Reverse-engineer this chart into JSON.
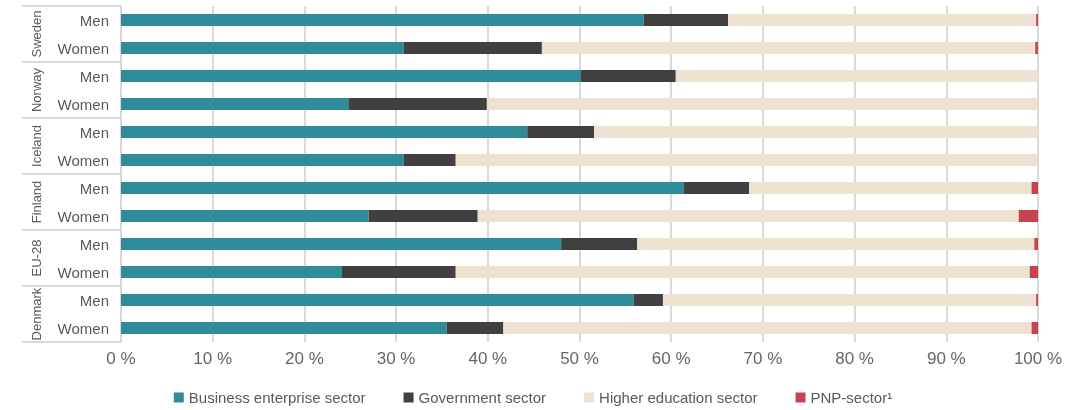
{
  "chart_data": {
    "type": "bar",
    "orientation": "horizontal",
    "stacked": true,
    "categories": [
      "Men",
      "Women",
      "Men",
      "Women",
      "Men",
      "Women",
      "Men",
      "Women",
      "Men",
      "Women",
      "Men",
      "Women"
    ],
    "annotations": [
      "Sweden",
      "Norway",
      "Iceland",
      "Finland",
      "EU-28",
      "Denmark"
    ],
    "series": [
      {
        "name": "Business enterprise sector",
        "color": "#2e8b9a",
        "values": [
          57,
          30.8,
          50.1,
          24.8,
          44.3,
          30.8,
          61.4,
          27,
          48,
          24.1,
          55.9,
          35.5
        ]
      },
      {
        "name": "Government sector",
        "color": "#404040",
        "values": [
          9.2,
          15.1,
          10.4,
          15.1,
          7.3,
          5.7,
          7.1,
          11.9,
          8.3,
          12.4,
          3.2,
          6.2
        ]
      },
      {
        "name": "Higher education sector",
        "color": "#ede1d1",
        "values": [
          33.6,
          53.8,
          39.5,
          60.1,
          48.4,
          63.5,
          30.8,
          59,
          43.3,
          62.6,
          40.7,
          57.6
        ]
      },
      {
        "name": "PNP-sector¹",
        "color": "#c8414f",
        "values": [
          0.2,
          0.3,
          0,
          0,
          0,
          0,
          0.7,
          2.1,
          0.4,
          0.9,
          0.2,
          0.7
        ]
      }
    ],
    "xlim": [
      0,
      100
    ],
    "xticks": [
      {
        "value": 0,
        "label": "0 %"
      },
      {
        "value": 10,
        "label": "10 %"
      },
      {
        "value": 20,
        "label": "20 %"
      },
      {
        "value": 30,
        "label": "30 %"
      },
      {
        "value": 40,
        "label": "40 %"
      },
      {
        "value": 50,
        "label": "50 %"
      },
      {
        "value": 60,
        "label": "60 %"
      },
      {
        "value": 70,
        "label": "70 %"
      },
      {
        "value": 80,
        "label": "80 %"
      },
      {
        "value": 90,
        "label": "90 %"
      },
      {
        "value": 100,
        "label": "100 %"
      }
    ],
    "grid": "x",
    "legend": "bottom"
  }
}
